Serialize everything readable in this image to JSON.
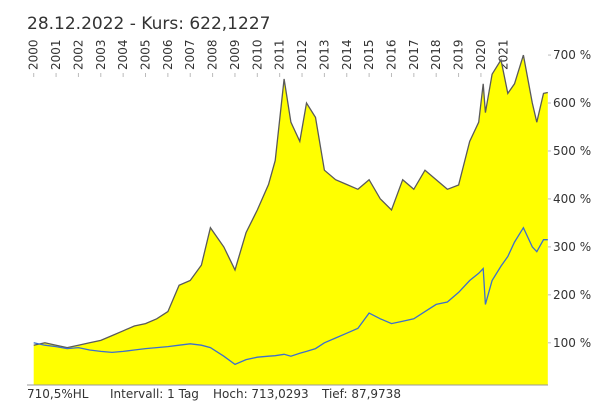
{
  "chart_data": {
    "type": "area-line",
    "title": "28.12.2022  - Kurs: 622,1227",
    "footer": [
      "710,5%HL",
      "Intervall: 1 Tag",
      "Hoch: 713,0293",
      "Tief: 87,9738"
    ],
    "x": [
      2000,
      2000.5,
      2001,
      2001.5,
      2002,
      2002.5,
      2003,
      2003.5,
      2004,
      2004.5,
      2005,
      2005.5,
      2006,
      2006.5,
      2007,
      2007.5,
      2007.9,
      2008.5,
      2009,
      2009.5,
      2010,
      2010.5,
      2010.8,
      2011.2,
      2011.5,
      2011.9,
      2012.2,
      2012.6,
      2013,
      2013.5,
      2014,
      2014.5,
      2015,
      2015.5,
      2016,
      2016.5,
      2017,
      2017.5,
      2018,
      2018.5,
      2019,
      2019.5,
      2019.9,
      2020.1,
      2020.2,
      2020.5,
      2020.9,
      2021.2,
      2021.5,
      2021.9,
      2022.3,
      2022.5,
      2022.8,
      2022.99
    ],
    "series": [
      {
        "color": "#5a5a5a",
        "fill": "#ffff00",
        "values": [
          95,
          100,
          95,
          90,
          95,
          100,
          105,
          115,
          125,
          135,
          140,
          150,
          165,
          220,
          230,
          262,
          340,
          300,
          252,
          330,
          377,
          430,
          480,
          650,
          560,
          520,
          600,
          570,
          460,
          440,
          430,
          420,
          440,
          400,
          377,
          440,
          420,
          460,
          440,
          420,
          429,
          520,
          560,
          640,
          580,
          660,
          690,
          620,
          640,
          700,
          600,
          560,
          620,
          622
        ]
      },
      {
        "color": "#3d6fcc",
        "values": [
          100,
          95,
          92,
          88,
          90,
          85,
          82,
          80,
          82,
          85,
          88,
          90,
          92,
          95,
          98,
          95,
          90,
          72,
          55,
          65,
          70,
          72,
          73,
          76,
          72,
          78,
          82,
          88,
          100,
          110,
          120,
          130,
          162,
          150,
          140,
          145,
          150,
          165,
          180,
          185,
          205,
          230,
          245,
          255,
          180,
          230,
          260,
          280,
          310,
          340,
          300,
          290,
          315,
          315
        ]
      }
    ],
    "xlim": [
      1999.7,
      2023.0
    ],
    "xticks": [
      2000,
      2001,
      2002,
      2003,
      2004,
      2005,
      2006,
      2007,
      2008,
      2009,
      2010,
      2011,
      2012,
      2013,
      2014,
      2015,
      2016,
      2017,
      2018,
      2019,
      2020,
      2021
    ],
    "ylim": [
      12,
      746
    ],
    "yticks": [
      {
        "value": 100,
        "label": "100 %"
      },
      {
        "value": 200,
        "label": "200 %"
      },
      {
        "value": 300,
        "label": "300 %"
      },
      {
        "value": 400,
        "label": "400 %"
      },
      {
        "value": 500,
        "label": "500 %"
      },
      {
        "value": 600,
        "label": "600 %"
      },
      {
        "value": 700,
        "label": "700 %"
      }
    ]
  }
}
